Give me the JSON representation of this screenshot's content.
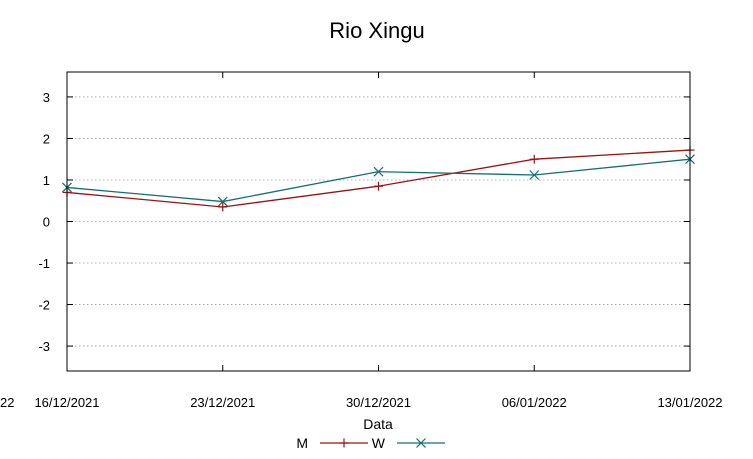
{
  "chart_data": {
    "type": "line",
    "title": "Rio Xingu",
    "xlabel": "Data",
    "ylabel": "",
    "x_tick_labels": [
      "16/12/2021",
      "23/12/2021",
      "30/12/2021",
      "06/01/2022",
      "13/01/2022"
    ],
    "x_clipped_left_label": "22",
    "y_ticks": [
      3,
      2,
      1,
      0,
      -1,
      -2,
      -3
    ],
    "y_tick_labels": [
      "3",
      "2",
      "1",
      "0",
      "-1",
      "-2",
      "-3"
    ],
    "ylim": [
      -3.6,
      3.6
    ],
    "grid": true,
    "legend_position": "bottom",
    "series": [
      {
        "name": "M",
        "color": "#a01010",
        "marker": "plus",
        "values": [
          0.7,
          0.35,
          0.85,
          1.5,
          1.72
        ]
      },
      {
        "name": "W",
        "color": "#137070",
        "marker": "cross",
        "values": [
          0.82,
          0.48,
          1.2,
          1.12,
          1.5
        ]
      }
    ]
  }
}
